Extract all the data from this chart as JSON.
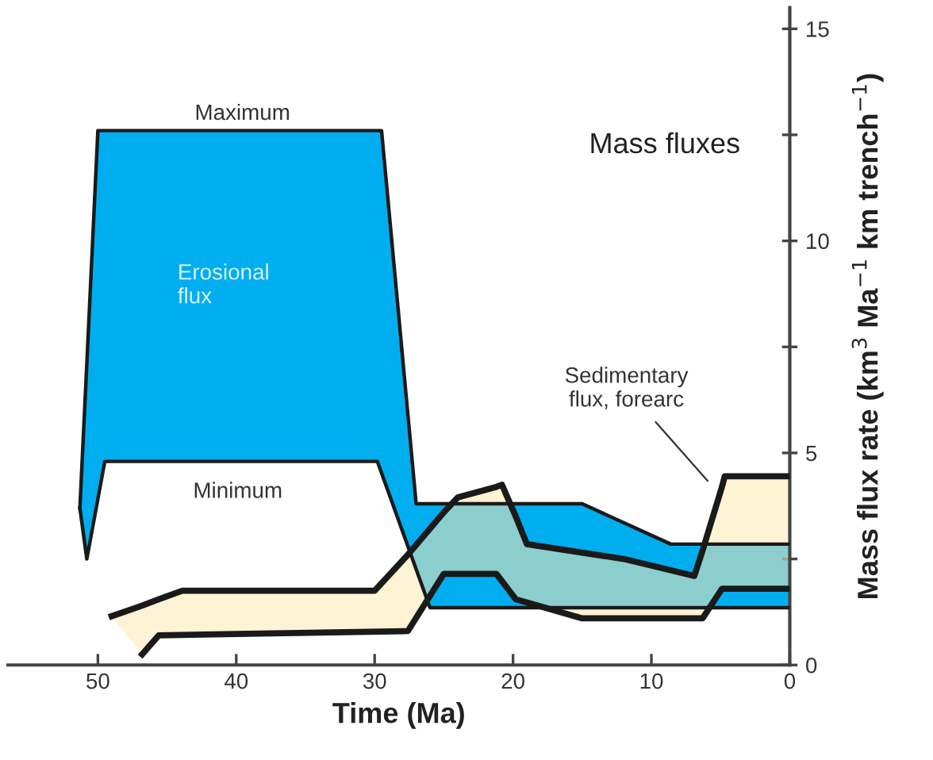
{
  "chart_data": {
    "type": "area",
    "xlabel": "Time (Ma)",
    "ylabel": "Mass flux rate (km$^{3}$ Ma$^{−1}$ km trench$^{−1}$)",
    "xlim": [
      56.5,
      0
    ],
    "xticks": [
      50,
      40,
      30,
      20,
      10,
      0
    ],
    "ylim": [
      0,
      15.5
    ],
    "yticks": [
      0,
      {
        "value": 2.5,
        "label": null
      },
      5,
      {
        "value": 7.5,
        "label": null
      },
      10,
      {
        "value": 12.5,
        "label": null
      },
      15
    ],
    "grid": false,
    "legend": false,
    "series": [
      {
        "color": "#00aeef",
        "x": [
          51.3,
          50.8,
          50,
          49.5,
          29.8,
          29.5,
          27,
          26,
          15,
          8.6,
          0
        ],
        "values": [
          3.7,
          7.1,
          12.6,
          12.6,
          12.6,
          12.6,
          3.8,
          3.8,
          3.8,
          2.85,
          2.85
        ]
      },
      {
        "color": "#fde9b0",
        "x": [
          49,
          46.8,
          45.6,
          43.9,
          30,
          27.6,
          25,
          24,
          21.2,
          20.8,
          19.8,
          19,
          15,
          12,
          6.9,
          6.3,
          4.9,
          4.7,
          0
        ],
        "values": [
          1.15,
          1.4,
          1.55,
          1.75,
          1.75,
          2.6,
          3.6,
          3.95,
          4.2,
          4.25,
          3.5,
          2.85,
          2.65,
          2.5,
          2.1,
          2.7,
          4.2,
          4.45,
          4.45
        ]
      },
      {
        "type": "line",
        "color": "#1a1a1a",
        "x": [
          51.3,
          50.8,
          49.5,
          29.8,
          26,
          0
        ],
        "values": [
          3.7,
          2.5,
          4.8,
          4.8,
          1.35,
          1.35
        ]
      },
      {
        "type": "line",
        "color": "#1a1a1a",
        "x": [
          46.8,
          45.6,
          27.6,
          25,
          21.2,
          19.8,
          15,
          6.3,
          4.9,
          0
        ],
        "values": [
          0.25,
          0.7,
          0.8,
          2.15,
          2.15,
          1.55,
          1.1,
          1.1,
          1.8,
          1.8
        ]
      }
    ],
    "annotations": [
      "Maximum",
      "Minimum",
      "Erosional\nflux",
      "Sedimentary\nflux, forearc",
      "Mass fluxes"
    ]
  }
}
